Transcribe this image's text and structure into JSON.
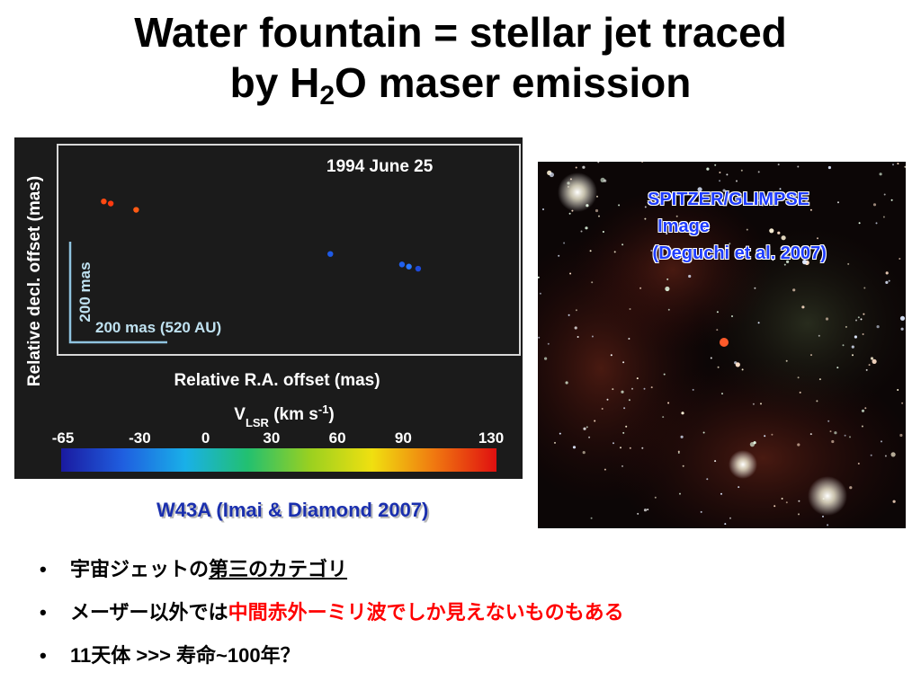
{
  "title": {
    "line1": "Water fountain = stellar jet traced",
    "line2_pre": "by H",
    "line2_sub": "2",
    "line2_post": "O maser emission"
  },
  "chart_data": {
    "type": "scatter",
    "date_label": "1994 June 25",
    "xlabel": "Relative R.A. offset (mas)",
    "ylabel": "Relative decl. offset (mas)",
    "scale_bar_x": "200 mas (520 AU)",
    "scale_bar_y": "200 mas",
    "colorbar_label": "V",
    "colorbar_sub": "LSR",
    "colorbar_unit_pre": " (km s",
    "colorbar_unit_sup": "-1",
    "colorbar_unit_post": ")",
    "colorbar_ticks": [
      "-65",
      "-30",
      "0",
      "30",
      "60",
      "90",
      "130"
    ],
    "colorbar_tick_values": [
      -65,
      -30,
      0,
      30,
      60,
      90,
      130
    ],
    "colorbar_colors": [
      "#1a1aa0",
      "#1f5fe0",
      "#19b0e8",
      "#22c070",
      "#9ad020",
      "#f0e010",
      "#f07810",
      "#e01010"
    ],
    "points": [
      {
        "x": 0.1,
        "y": 0.73,
        "color": "#ff4a12"
      },
      {
        "x": 0.115,
        "y": 0.72,
        "color": "#ff3a10"
      },
      {
        "x": 0.17,
        "y": 0.69,
        "color": "#ff5a14"
      },
      {
        "x": 0.59,
        "y": 0.48,
        "color": "#1e5ae6"
      },
      {
        "x": 0.745,
        "y": 0.43,
        "color": "#2060ee"
      },
      {
        "x": 0.76,
        "y": 0.42,
        "color": "#2a78ff"
      },
      {
        "x": 0.78,
        "y": 0.41,
        "color": "#1e4ad8"
      }
    ]
  },
  "caption_left": "W43A (Imai & Diamond 2007)",
  "sky_caption": [
    "SPITZER/GLIMPSE",
    "  Image",
    " (Deguchi et al. 2007)"
  ],
  "bullets": [
    {
      "plain": "宇宙ジェットの",
      "underline": "第三のカテゴリ"
    },
    {
      "plain": "メーザー以外では",
      "red": "中間赤外ーミリ波でしか見えないものもある"
    },
    {
      "plain": "11天体 >>> 寿命~100年？"
    }
  ],
  "bullet_symbol": "•"
}
